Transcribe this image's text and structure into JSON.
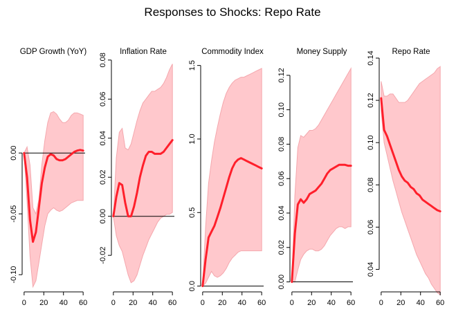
{
  "figure": {
    "title": "Responses to Shocks: Repo Rate"
  },
  "chart_data": [
    {
      "type": "line",
      "title": "GDP Growth (YoY)",
      "x": [
        0,
        3,
        6,
        9,
        12,
        15,
        18,
        21,
        24,
        27,
        30,
        33,
        36,
        39,
        42,
        45,
        48,
        51,
        54,
        57,
        60
      ],
      "series": [
        {
          "values": [
            0.0,
            -0.02,
            -0.055,
            -0.073,
            -0.065,
            -0.045,
            -0.025,
            -0.012,
            -0.003,
            -0.001,
            -0.002,
            -0.005,
            -0.006,
            -0.006,
            -0.005,
            -0.003,
            -0.001,
            0.001,
            0.002,
            0.0025,
            0.002
          ]
        }
      ],
      "band_upper": [
        0.0,
        0.005,
        -0.01,
        -0.045,
        -0.05,
        -0.038,
        -0.01,
        0.01,
        0.025,
        0.033,
        0.034,
        0.032,
        0.028,
        0.025,
        0.025,
        0.027,
        0.031,
        0.033,
        0.033,
        0.032,
        0.031
      ],
      "band_lower": [
        0.0,
        -0.04,
        -0.085,
        -0.11,
        -0.105,
        -0.09,
        -0.075,
        -0.06,
        -0.05,
        -0.047,
        -0.045,
        -0.047,
        -0.048,
        -0.047,
        -0.045,
        -0.043,
        -0.041,
        -0.04,
        -0.039,
        -0.039,
        -0.039
      ],
      "xlim": [
        -2,
        62
      ],
      "ylim": [
        -0.113,
        0.078
      ],
      "x_ticks": [
        0,
        20,
        40,
        60
      ],
      "y_ticks": [
        -0.1,
        -0.05,
        0.0
      ],
      "y_tick_labels": [
        "-0.10",
        "-0.05",
        "0.00"
      ],
      "zero_line": 0
    },
    {
      "type": "line",
      "title": "Inflation Rate",
      "x": [
        0,
        3,
        6,
        9,
        12,
        15,
        18,
        21,
        24,
        27,
        30,
        33,
        36,
        39,
        42,
        45,
        48,
        51,
        54,
        57,
        60
      ],
      "series": [
        {
          "values": [
            0.0,
            0.01,
            0.017,
            0.016,
            0.007,
            0.0,
            0.0,
            0.005,
            0.012,
            0.02,
            0.026,
            0.031,
            0.033,
            0.033,
            0.032,
            0.032,
            0.032,
            0.033,
            0.035,
            0.037,
            0.039
          ]
        }
      ],
      "band_upper": [
        0.0,
        0.03,
        0.043,
        0.045,
        0.035,
        0.034,
        0.037,
        0.043,
        0.049,
        0.054,
        0.058,
        0.06,
        0.062,
        0.064,
        0.064,
        0.065,
        0.066,
        0.068,
        0.071,
        0.075,
        0.078
      ],
      "band_lower": [
        0.0,
        -0.01,
        -0.015,
        -0.018,
        -0.024,
        -0.03,
        -0.034,
        -0.033,
        -0.03,
        -0.025,
        -0.02,
        -0.016,
        -0.012,
        -0.009,
        -0.006,
        -0.003,
        -0.001,
        0.0,
        0.001,
        0.001,
        0.002
      ],
      "xlim": [
        -2,
        62
      ],
      "ylim": [
        -0.038,
        0.081
      ],
      "x_ticks": [
        0,
        20,
        40,
        60
      ],
      "y_ticks": [
        -0.02,
        0.0,
        0.02,
        0.04,
        0.06,
        0.08
      ],
      "y_tick_labels": [
        "-0.02",
        "0.00",
        "0.02",
        "0.04",
        "0.06",
        "0.08"
      ],
      "zero_line": 0
    },
    {
      "type": "line",
      "title": "Commodity Index",
      "x": [
        0,
        3,
        6,
        9,
        12,
        15,
        18,
        21,
        24,
        27,
        30,
        33,
        36,
        39,
        42,
        45,
        48,
        51,
        54,
        57,
        60
      ],
      "series": [
        {
          "values": [
            0.0,
            0.18,
            0.33,
            0.37,
            0.41,
            0.47,
            0.53,
            0.6,
            0.67,
            0.74,
            0.8,
            0.84,
            0.86,
            0.87,
            0.86,
            0.85,
            0.84,
            0.83,
            0.82,
            0.81,
            0.8
          ]
        }
      ],
      "band_upper": [
        0.0,
        0.4,
        0.7,
        0.85,
        0.98,
        1.08,
        1.17,
        1.25,
        1.31,
        1.35,
        1.38,
        1.4,
        1.41,
        1.42,
        1.42,
        1.43,
        1.44,
        1.45,
        1.46,
        1.47,
        1.48
      ],
      "band_lower": [
        0.0,
        0.02,
        0.06,
        0.1,
        0.07,
        0.06,
        0.07,
        0.09,
        0.12,
        0.16,
        0.19,
        0.21,
        0.23,
        0.24,
        0.24,
        0.24,
        0.24,
        0.24,
        0.24,
        0.24,
        0.24
      ],
      "xlim": [
        -2,
        62
      ],
      "ylim": [
        -0.03,
        1.55
      ],
      "x_ticks": [
        0,
        20,
        40,
        60
      ],
      "y_ticks": [
        0.0,
        0.5,
        1.0,
        1.5
      ],
      "y_tick_labels": [
        "0.0",
        "0.5",
        "1.0",
        "1.5"
      ],
      "zero_line": 0
    },
    {
      "type": "line",
      "title": "Money Supply",
      "x": [
        0,
        3,
        6,
        9,
        12,
        15,
        18,
        21,
        24,
        27,
        30,
        33,
        36,
        39,
        42,
        45,
        48,
        51,
        54,
        57,
        60
      ],
      "series": [
        {
          "values": [
            0.0,
            0.028,
            0.045,
            0.048,
            0.046,
            0.048,
            0.051,
            0.052,
            0.053,
            0.055,
            0.057,
            0.06,
            0.063,
            0.065,
            0.066,
            0.067,
            0.068,
            0.068,
            0.068,
            0.0675,
            0.0675
          ]
        }
      ],
      "band_upper": [
        0.0,
        0.05,
        0.078,
        0.085,
        0.084,
        0.086,
        0.088,
        0.088,
        0.089,
        0.091,
        0.094,
        0.097,
        0.1,
        0.103,
        0.106,
        0.109,
        0.112,
        0.115,
        0.118,
        0.121,
        0.124
      ],
      "band_lower": [
        0.0,
        0.0,
        0.007,
        0.013,
        0.016,
        0.018,
        0.019,
        0.019,
        0.018,
        0.018,
        0.019,
        0.021,
        0.024,
        0.027,
        0.029,
        0.031,
        0.032,
        0.032,
        0.031,
        0.032,
        0.032
      ],
      "xlim": [
        -2,
        62
      ],
      "ylim": [
        -0.005,
        0.13
      ],
      "x_ticks": [
        0,
        20,
        40,
        60
      ],
      "y_ticks": [
        0.0,
        0.02,
        0.04,
        0.06,
        0.08,
        0.1,
        0.12
      ],
      "y_tick_labels": [
        "0.00",
        "0.02",
        "0.04",
        "0.06",
        "0.08",
        "0.10",
        "0.12"
      ],
      "zero_line": 0
    },
    {
      "type": "line",
      "title": "Repo Rate",
      "x": [
        0,
        3,
        6,
        9,
        12,
        15,
        18,
        21,
        24,
        27,
        30,
        33,
        36,
        39,
        42,
        45,
        48,
        51,
        54,
        57,
        60
      ],
      "series": [
        {
          "values": [
            0.121,
            0.106,
            0.103,
            0.099,
            0.095,
            0.091,
            0.087,
            0.084,
            0.082,
            0.081,
            0.079,
            0.078,
            0.076,
            0.075,
            0.073,
            0.072,
            0.071,
            0.07,
            0.069,
            0.068,
            0.0675
          ]
        }
      ],
      "band_upper": [
        0.129,
        0.122,
        0.122,
        0.123,
        0.123,
        0.121,
        0.119,
        0.119,
        0.119,
        0.12,
        0.122,
        0.124,
        0.126,
        0.128,
        0.129,
        0.13,
        0.131,
        0.132,
        0.133,
        0.135,
        0.136
      ],
      "band_lower": [
        0.115,
        0.1,
        0.094,
        0.088,
        0.082,
        0.077,
        0.072,
        0.067,
        0.063,
        0.059,
        0.055,
        0.051,
        0.047,
        0.044,
        0.041,
        0.038,
        0.036,
        0.033,
        0.031,
        0.029,
        0.028
      ],
      "xlim": [
        -2,
        62
      ],
      "ylim": [
        0.03,
        0.14
      ],
      "x_ticks": [
        0,
        20,
        40,
        60
      ],
      "y_ticks": [
        0.04,
        0.06,
        0.08,
        0.1,
        0.12,
        0.14
      ],
      "y_tick_labels": [
        "0.04",
        "0.06",
        "0.08",
        "0.10",
        "0.12",
        "0.14"
      ],
      "zero_line": null
    }
  ]
}
